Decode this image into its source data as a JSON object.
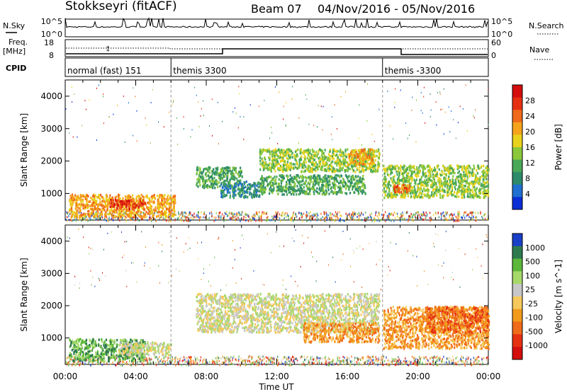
{
  "header": {
    "station": "Stokkseyri (fitACF)",
    "beam": "Beam 07",
    "date_range": "04/Nov/2016 - 05/Nov/2016"
  },
  "strip": {
    "nsky_label": "N.Sky",
    "nsky_ticks": [
      "10^5",
      "10^0"
    ],
    "nsearch_label": "N.Search",
    "nsearch_ticks": [
      "10^5",
      "10^0"
    ],
    "freq_label": "Freq.",
    "freq_unit": "[MHz]",
    "freq_ticks": [
      "18",
      "8"
    ],
    "nave_label": "Nave",
    "nave_ticks": [
      "60",
      "0"
    ],
    "cpid_label": "CPID",
    "cpid_segments": [
      {
        "label": "normal (fast) 151",
        "start_hour": 0
      },
      {
        "label": "themis 3300",
        "start_hour": 6
      },
      {
        "label": "themis -3300",
        "start_hour": 18
      }
    ]
  },
  "chart_data": [
    {
      "type": "heatmap",
      "name": "power",
      "ylabel": "Slant Range [km]",
      "xlabel": "",
      "x_ticks": [
        "00:00",
        "04:00",
        "08:00",
        "12:00",
        "16:00",
        "20:00",
        "00:00"
      ],
      "xlim_hours": [
        0,
        24
      ],
      "ylim_km": [
        180,
        4500
      ],
      "y_ticks": [
        "1000",
        "2000",
        "3000",
        "4000"
      ],
      "colorbar": {
        "label": "Power [dB]",
        "ticks": [
          "4",
          "8",
          "12",
          "16",
          "20",
          "24",
          "28"
        ],
        "colors": [
          "#0a2dd6",
          "#1f6fd0",
          "#2d8a6a",
          "#4aa858",
          "#8ac83a",
          "#e9d21c",
          "#f5a31a",
          "#ef6a1a",
          "#e63012",
          "#d40d0d"
        ]
      },
      "regions": [
        {
          "x0": 0.2,
          "x1": 6.2,
          "y0": 300,
          "y1": 1000,
          "level": 6
        },
        {
          "x0": 7.4,
          "x1": 10.0,
          "y0": 1200,
          "y1": 1850,
          "level": 3
        },
        {
          "x0": 8.8,
          "x1": 11.0,
          "y0": 900,
          "y1": 1400,
          "level": 2
        },
        {
          "x0": 11.0,
          "x1": 17.8,
          "y0": 1700,
          "y1": 2400,
          "level": 4
        },
        {
          "x0": 11.0,
          "x1": 17.0,
          "y0": 1000,
          "y1": 1600,
          "level": 3
        },
        {
          "x0": 18.0,
          "x1": 24.0,
          "y0": 900,
          "y1": 1900,
          "level": 4
        },
        {
          "x0": 18.5,
          "x1": 19.5,
          "y0": 1050,
          "y1": 1300,
          "level": 7
        },
        {
          "x0": 16.0,
          "x1": 17.5,
          "y0": 1900,
          "y1": 2400,
          "level": 6
        },
        {
          "x0": 2.5,
          "x1": 4.5,
          "y0": 550,
          "y1": 850,
          "level": 8
        }
      ]
    },
    {
      "type": "heatmap",
      "name": "velocity",
      "ylabel": "Slant Range [km]",
      "xlabel": "Time UT",
      "x_ticks": [
        "00:00",
        "04:00",
        "08:00",
        "12:00",
        "16:00",
        "20:00",
        "00:00"
      ],
      "xlim_hours": [
        0,
        24
      ],
      "ylim_km": [
        180,
        4500
      ],
      "y_ticks": [
        "1000",
        "2000",
        "3000",
        "4000"
      ],
      "colorbar": {
        "label": "Velocity [m s^-1]",
        "ticks": [
          "1000",
          "500",
          "100",
          "25",
          "-25",
          "-100",
          "-500",
          "-1000"
        ],
        "colors": [
          "#1a3fc8",
          "#2e7a4f",
          "#5cb83a",
          "#a6d96a",
          "#c7c7c7",
          "#f7c95c",
          "#f29a1c",
          "#ef6a1a",
          "#e63012",
          "#d40d0d"
        ]
      },
      "regions": [
        {
          "x0": 0.2,
          "x1": 4.5,
          "y0": 300,
          "y1": 1000,
          "level": 2
        },
        {
          "x0": 7.4,
          "x1": 17.8,
          "y0": 1200,
          "y1": 2400,
          "level": 4
        },
        {
          "x0": 3.0,
          "x1": 6.0,
          "y0": 500,
          "y1": 900,
          "level": 4
        },
        {
          "x0": 13.5,
          "x1": 17.8,
          "y0": 900,
          "y1": 1500,
          "level": 6
        },
        {
          "x0": 18.0,
          "x1": 24.0,
          "y0": 700,
          "y1": 2000,
          "level": 6
        },
        {
          "x0": 20.5,
          "x1": 24.0,
          "y0": 1200,
          "y1": 2000,
          "level": 7
        }
      ]
    }
  ]
}
